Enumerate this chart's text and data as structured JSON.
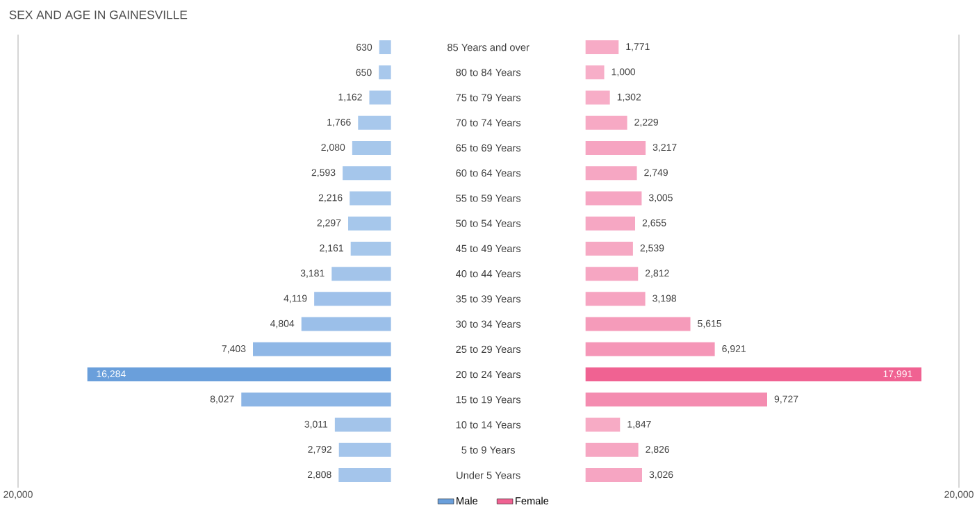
{
  "chart_data": [
    {
      "type": "bar",
      "orientation": "horizontal",
      "title": "SEX AND AGE IN GAINESVILLE",
      "categories": [
        "85 Years and over",
        "80 to 84 Years",
        "75 to 79 Years",
        "70 to 74 Years",
        "65 to 69 Years",
        "60 to 64 Years",
        "55 to 59 Years",
        "50 to 54 Years",
        "45 to 49 Years",
        "40 to 44 Years",
        "35 to 39 Years",
        "30 to 34 Years",
        "25 to 29 Years",
        "20 to 24 Years",
        "15 to 19 Years",
        "10 to 14 Years",
        "5 to 9 Years",
        "Under 5 Years"
      ],
      "series": [
        {
          "name": "Male",
          "color": "#6a9fdb",
          "values": [
            630,
            650,
            1162,
            1766,
            2080,
            2593,
            2216,
            2297,
            2161,
            3181,
            4119,
            4804,
            7403,
            16284,
            8027,
            3011,
            2792,
            2808
          ],
          "value_labels": [
            "630",
            "650",
            "1,162",
            "1,766",
            "2,080",
            "2,593",
            "2,216",
            "2,297",
            "2,161",
            "3,181",
            "4,119",
            "4,804",
            "7,403",
            "16,284",
            "8,027",
            "3,011",
            "2,792",
            "2,808"
          ],
          "colors": [
            "#a8c8ec",
            "#a8c8ec",
            "#a8c8ec",
            "#a8c8ec",
            "#a6c7eb",
            "#a5c6eb",
            "#a6c7eb",
            "#a6c7eb",
            "#a6c7eb",
            "#a3c4ea",
            "#9fc1ea",
            "#9bbfe9",
            "#8fb7e6",
            "#6a9fdb",
            "#8cb5e5",
            "#a3c4ea",
            "#a4c5eb",
            "#a4c5eb"
          ]
        }
      ],
      "xlim": [
        20000,
        0
      ],
      "xticks": [
        {
          "value": 20000,
          "label": "20,000"
        }
      ],
      "legend": "bottom"
    },
    {
      "type": "bar",
      "orientation": "horizontal",
      "series": [
        {
          "name": "Female",
          "color": "#f06292",
          "values": [
            1771,
            1000,
            1302,
            2229,
            3217,
            2749,
            3005,
            2655,
            2539,
            2812,
            3198,
            5615,
            6921,
            17991,
            9727,
            1847,
            2826,
            3026
          ],
          "value_labels": [
            "1,771",
            "1,000",
            "1,302",
            "2,229",
            "3,217",
            "2,749",
            "3,005",
            "2,655",
            "2,539",
            "2,812",
            "3,198",
            "5,615",
            "6,921",
            "17,991",
            "9,727",
            "1,847",
            "2,826",
            "3,026"
          ],
          "colors": [
            "#f7abc6",
            "#f7aec8",
            "#f7adc7",
            "#f7a9c4",
            "#f6a4c1",
            "#f6a7c3",
            "#f6a5c2",
            "#f6a7c3",
            "#f6a8c3",
            "#f6a6c2",
            "#f6a4c1",
            "#f59bba",
            "#f596b7",
            "#f06292",
            "#f48cb0",
            "#f7abc5",
            "#f6a6c2",
            "#f6a5c2"
          ]
        }
      ],
      "xlim": [
        0,
        20000
      ],
      "xticks": [
        {
          "value": 20000,
          "label": "20,000"
        }
      ],
      "legend": "bottom"
    }
  ]
}
